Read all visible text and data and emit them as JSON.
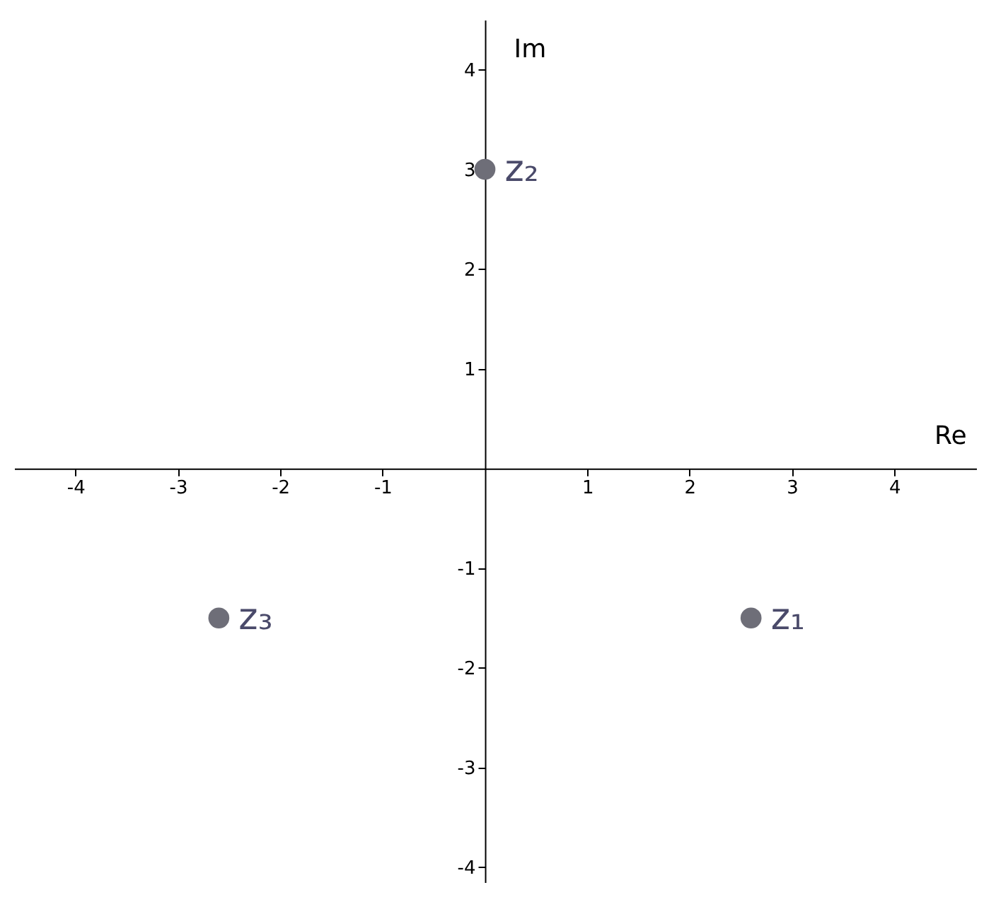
{
  "chart_data": {
    "type": "scatter",
    "xlabel": "Re",
    "ylabel": "Im",
    "x": [
      2.6,
      0,
      -2.6
    ],
    "series": [
      {
        "color": "#6e6e78",
        "values": [
          -1.5,
          3,
          -1.5
        ]
      }
    ],
    "marker": "circle",
    "xlim": [
      -4.6,
      4.8
    ],
    "ylim": [
      -4.15,
      4.5
    ],
    "xticks": [
      -4,
      -3,
      -2,
      -1,
      1,
      2,
      3,
      4
    ],
    "yticks": [
      -4,
      -3,
      -2,
      -1,
      1,
      2,
      3,
      4
    ],
    "annotations": [
      {
        "text": "z₁",
        "x": 2.6,
        "y": -1.5
      },
      {
        "text": "z₂",
        "x": 0,
        "y": 3
      },
      {
        "text": "z₃",
        "x": -2.6,
        "y": -1.5
      }
    ]
  }
}
